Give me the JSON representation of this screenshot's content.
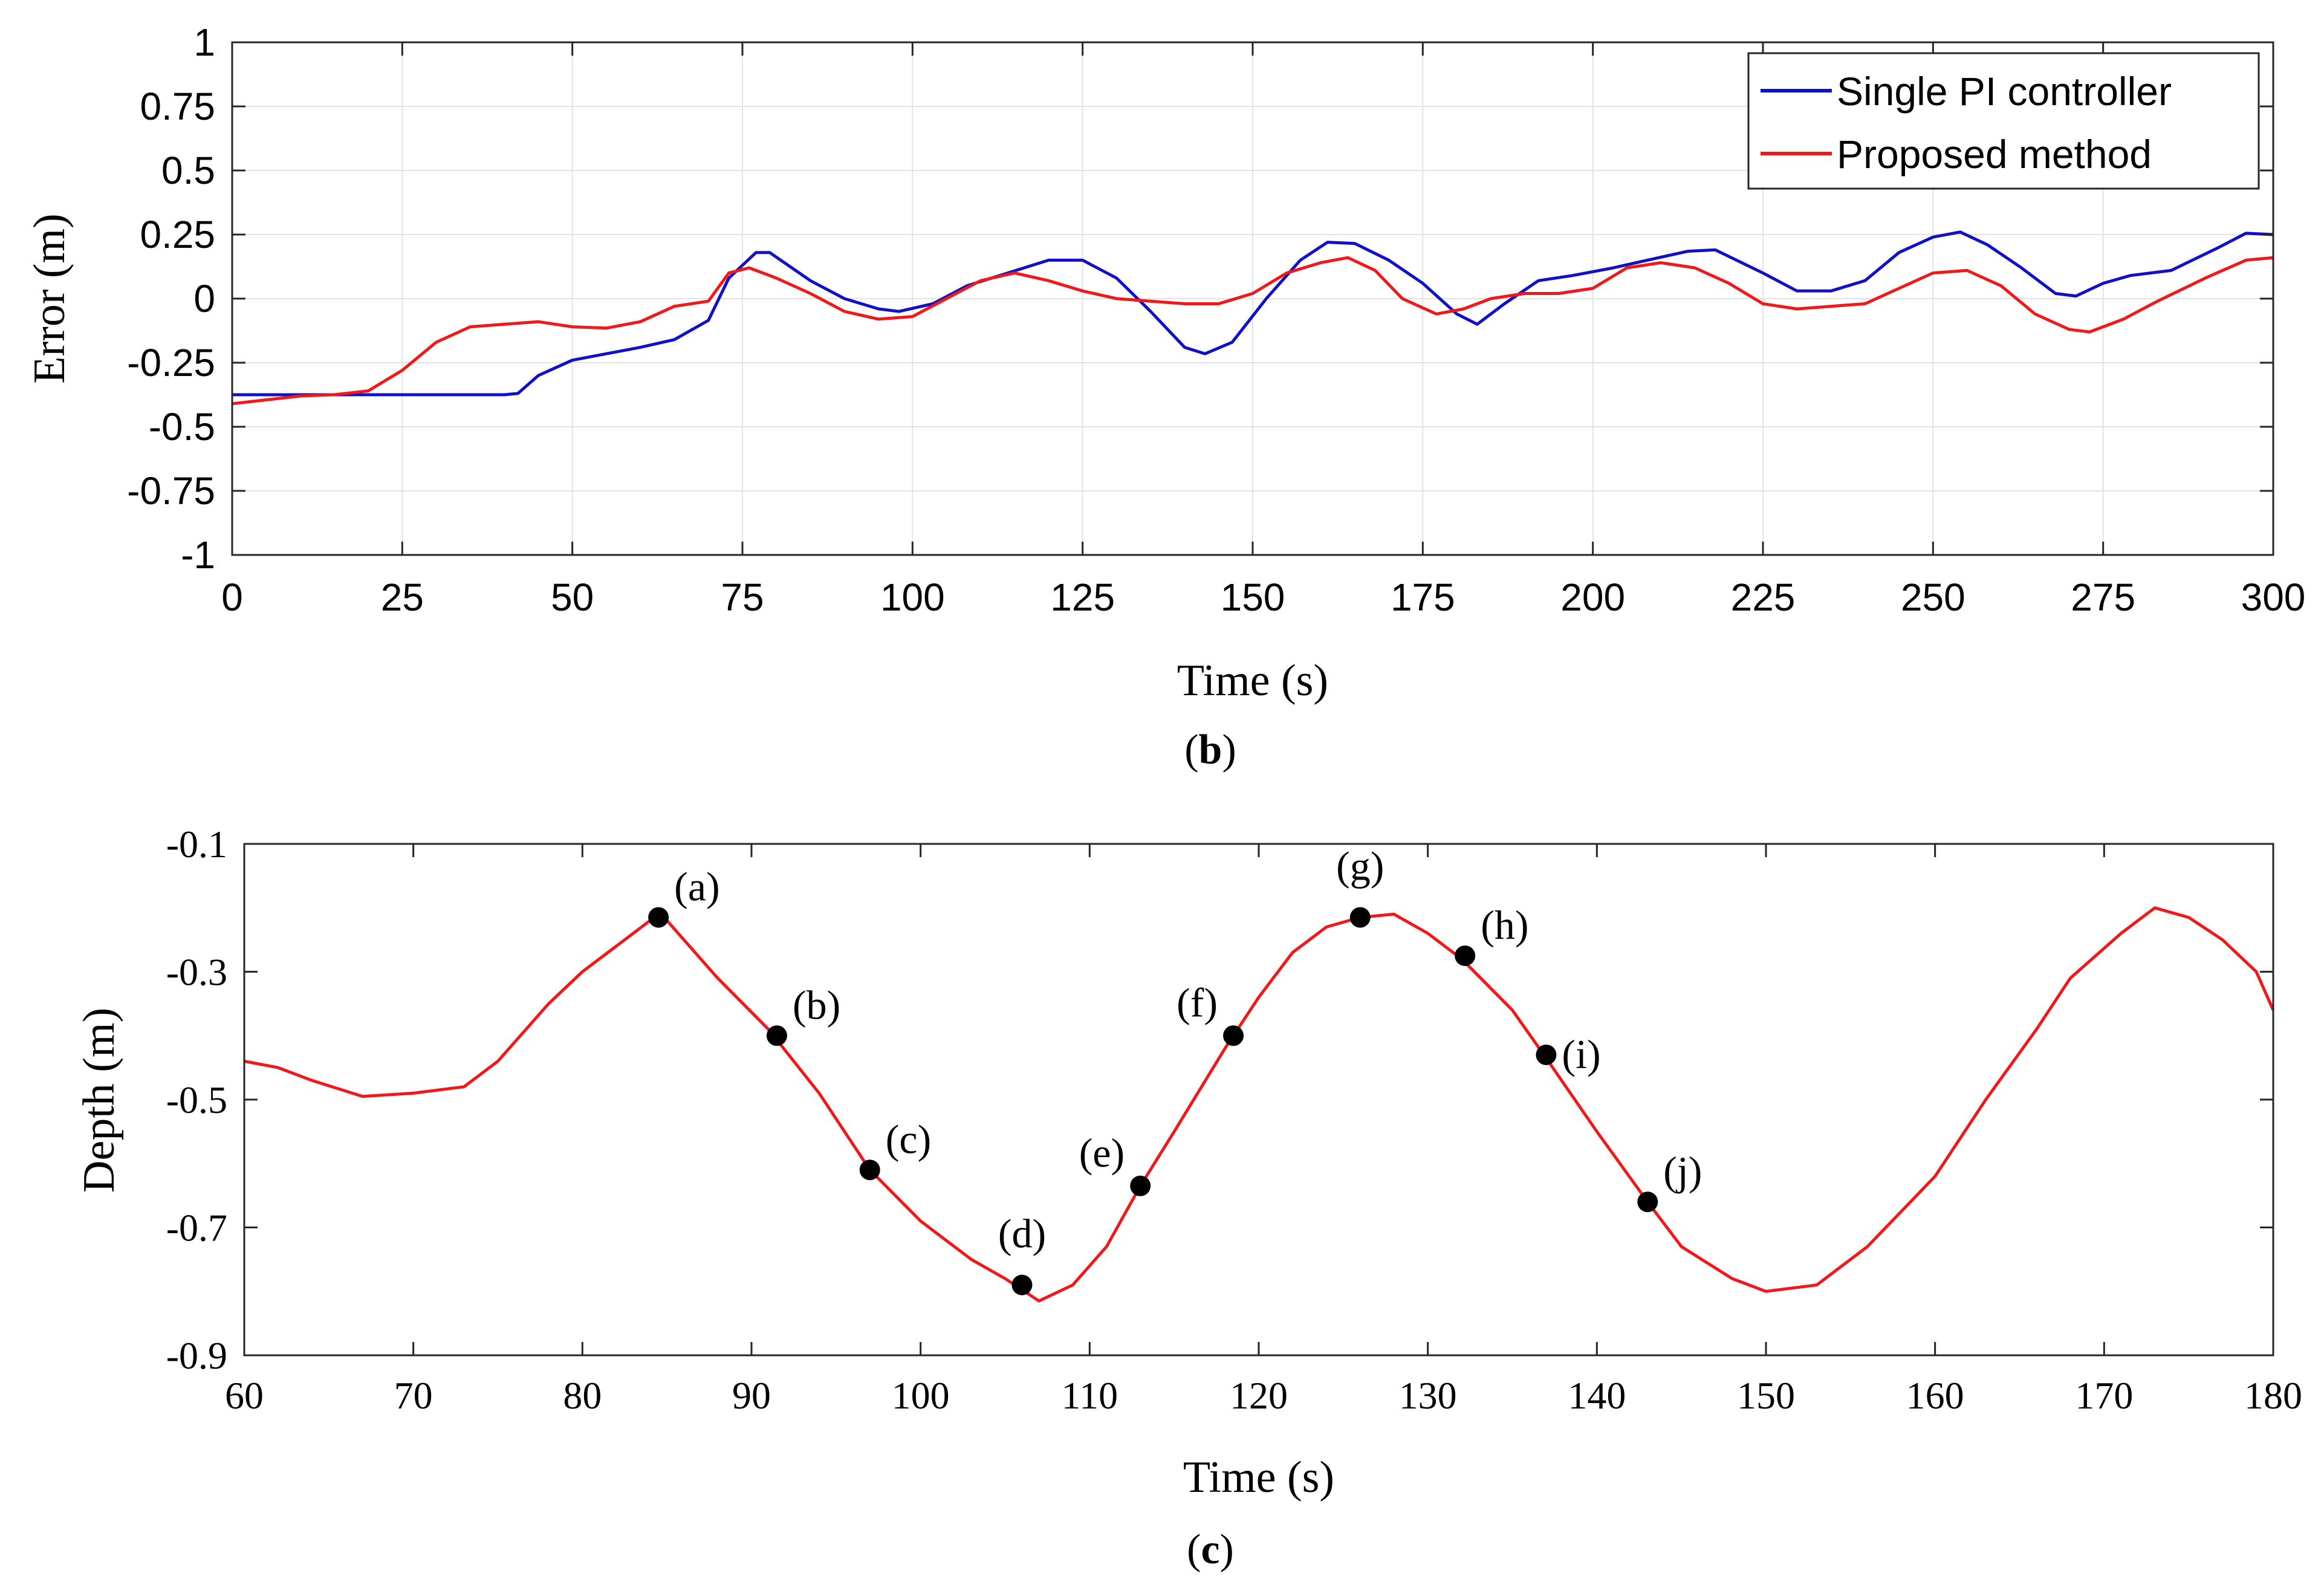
{
  "chart_data": [
    {
      "id": "b",
      "type": "line",
      "caption": "b",
      "xlabel": "Time (s)",
      "ylabel": "Error (m)",
      "xlim": [
        0,
        300
      ],
      "ylim": [
        -1,
        1
      ],
      "xticks": [
        "0",
        "25",
        "50",
        "75",
        "100",
        "125",
        "150",
        "175",
        "200",
        "225",
        "250",
        "275",
        "300"
      ],
      "yticks": [
        "1",
        "0.75",
        "0.5",
        "0.25",
        "0",
        "-0.25",
        "-0.5",
        "-0.75",
        "-1"
      ],
      "grid": true,
      "legend_position": "top-right",
      "series": [
        {
          "name": "Single PI controller",
          "color": "#1010c8",
          "points": [
            [
              0,
              -0.375
            ],
            [
              40,
              -0.375
            ],
            [
              42,
              -0.37
            ],
            [
              45,
              -0.3
            ],
            [
              50,
              -0.24
            ],
            [
              55,
              -0.215
            ],
            [
              60,
              -0.19
            ],
            [
              65,
              -0.16
            ],
            [
              70,
              -0.085
            ],
            [
              73,
              0.08
            ],
            [
              77,
              0.18
            ],
            [
              79,
              0.18
            ],
            [
              85,
              0.07
            ],
            [
              90,
              0.0
            ],
            [
              95,
              -0.04
            ],
            [
              98,
              -0.05
            ],
            [
              103,
              -0.02
            ],
            [
              108,
              0.05
            ],
            [
              114,
              0.1
            ],
            [
              120,
              0.15
            ],
            [
              125,
              0.15
            ],
            [
              130,
              0.08
            ],
            [
              135,
              -0.05
            ],
            [
              140,
              -0.19
            ],
            [
              143,
              -0.215
            ],
            [
              147,
              -0.17
            ],
            [
              152,
              0.0
            ],
            [
              157,
              0.15
            ],
            [
              161,
              0.22
            ],
            [
              165,
              0.215
            ],
            [
              170,
              0.15
            ],
            [
              175,
              0.06
            ],
            [
              180,
              -0.06
            ],
            [
              183,
              -0.1
            ],
            [
              187,
              -0.02
            ],
            [
              192,
              0.07
            ],
            [
              197,
              0.09
            ],
            [
              203,
              0.12
            ],
            [
              208,
              0.15
            ],
            [
              214,
              0.185
            ],
            [
              218,
              0.19
            ],
            [
              225,
              0.1
            ],
            [
              230,
              0.03
            ],
            [
              235,
              0.03
            ],
            [
              240,
              0.07
            ],
            [
              245,
              0.18
            ],
            [
              250,
              0.24
            ],
            [
              254,
              0.26
            ],
            [
              258,
              0.21
            ],
            [
              263,
              0.12
            ],
            [
              268,
              0.02
            ],
            [
              271,
              0.01
            ],
            [
              275,
              0.06
            ],
            [
              279,
              0.09
            ],
            [
              285,
              0.11
            ],
            [
              292,
              0.2
            ],
            [
              296,
              0.255
            ],
            [
              300,
              0.25
            ]
          ]
        },
        {
          "name": "Proposed method",
          "color": "#f01818",
          "points": [
            [
              0,
              -0.41
            ],
            [
              5,
              -0.395
            ],
            [
              10,
              -0.38
            ],
            [
              15,
              -0.375
            ],
            [
              20,
              -0.36
            ],
            [
              25,
              -0.28
            ],
            [
              30,
              -0.17
            ],
            [
              35,
              -0.11
            ],
            [
              40,
              -0.1
            ],
            [
              45,
              -0.09
            ],
            [
              50,
              -0.11
            ],
            [
              55,
              -0.115
            ],
            [
              60,
              -0.09
            ],
            [
              65,
              -0.03
            ],
            [
              70,
              -0.01
            ],
            [
              73,
              0.1
            ],
            [
              76,
              0.12
            ],
            [
              80,
              0.08
            ],
            [
              85,
              0.02
            ],
            [
              90,
              -0.05
            ],
            [
              95,
              -0.08
            ],
            [
              100,
              -0.07
            ],
            [
              105,
              0.0
            ],
            [
              110,
              0.07
            ],
            [
              115,
              0.1
            ],
            [
              120,
              0.07
            ],
            [
              125,
              0.03
            ],
            [
              130,
              0.0
            ],
            [
              135,
              -0.01
            ],
            [
              140,
              -0.02
            ],
            [
              145,
              -0.02
            ],
            [
              150,
              0.02
            ],
            [
              155,
              0.1
            ],
            [
              160,
              0.14
            ],
            [
              164,
              0.16
            ],
            [
              168,
              0.11
            ],
            [
              172,
              0.0
            ],
            [
              177,
              -0.06
            ],
            [
              181,
              -0.04
            ],
            [
              185,
              0.0
            ],
            [
              190,
              0.02
            ],
            [
              195,
              0.02
            ],
            [
              200,
              0.04
            ],
            [
              205,
              0.12
            ],
            [
              210,
              0.14
            ],
            [
              215,
              0.12
            ],
            [
              220,
              0.06
            ],
            [
              225,
              -0.02
            ],
            [
              230,
              -0.04
            ],
            [
              235,
              -0.03
            ],
            [
              240,
              -0.02
            ],
            [
              245,
              0.04
            ],
            [
              250,
              0.1
            ],
            [
              255,
              0.11
            ],
            [
              260,
              0.05
            ],
            [
              265,
              -0.06
            ],
            [
              270,
              -0.12
            ],
            [
              273,
              -0.13
            ],
            [
              278,
              -0.08
            ],
            [
              283,
              -0.01
            ],
            [
              290,
              0.08
            ],
            [
              296,
              0.15
            ],
            [
              300,
              0.16
            ]
          ]
        }
      ]
    },
    {
      "id": "c",
      "type": "line",
      "caption": "c",
      "xlabel": "Time (s)",
      "ylabel": "Depth (m)",
      "xlim": [
        60,
        180
      ],
      "ylim": [
        -0.9,
        -0.1
      ],
      "xticks": [
        "60",
        "70",
        "80",
        "90",
        "100",
        "110",
        "120",
        "130",
        "140",
        "150",
        "160",
        "170",
        "180"
      ],
      "yticks": [
        "-0.1",
        "-0.3",
        "-0.5",
        "-0.7",
        "-0.9"
      ],
      "grid": false,
      "series": [
        {
          "name": "Depth",
          "color": "#f01818",
          "points": [
            [
              60,
              -0.44
            ],
            [
              62,
              -0.45
            ],
            [
              64,
              -0.47
            ],
            [
              67,
              -0.495
            ],
            [
              70,
              -0.49
            ],
            [
              73,
              -0.48
            ],
            [
              75,
              -0.44
            ],
            [
              78,
              -0.35
            ],
            [
              80,
              -0.3
            ],
            [
              82,
              -0.26
            ],
            [
              84,
              -0.22
            ],
            [
              85,
              -0.22
            ],
            [
              88,
              -0.31
            ],
            [
              91,
              -0.39
            ],
            [
              94,
              -0.49
            ],
            [
              97,
              -0.61
            ],
            [
              100,
              -0.69
            ],
            [
              103,
              -0.75
            ],
            [
              105,
              -0.78
            ],
            [
              107,
              -0.815
            ],
            [
              109,
              -0.79
            ],
            [
              111,
              -0.73
            ],
            [
              113,
              -0.635
            ],
            [
              115,
              -0.55
            ],
            [
              118,
              -0.42
            ],
            [
              120,
              -0.34
            ],
            [
              122,
              -0.27
            ],
            [
              124,
              -0.23
            ],
            [
              126,
              -0.215
            ],
            [
              128,
              -0.21
            ],
            [
              130,
              -0.24
            ],
            [
              132,
              -0.28
            ],
            [
              135,
              -0.36
            ],
            [
              137,
              -0.435
            ],
            [
              140,
              -0.55
            ],
            [
              143,
              -0.66
            ],
            [
              145,
              -0.73
            ],
            [
              148,
              -0.78
            ],
            [
              150,
              -0.8
            ],
            [
              153,
              -0.79
            ],
            [
              156,
              -0.73
            ],
            [
              160,
              -0.62
            ],
            [
              163,
              -0.5
            ],
            [
              166,
              -0.39
            ],
            [
              168,
              -0.31
            ],
            [
              171,
              -0.24
            ],
            [
              173,
              -0.2
            ],
            [
              175,
              -0.215
            ],
            [
              177,
              -0.25
            ],
            [
              179,
              -0.3
            ],
            [
              180,
              -0.36
            ]
          ]
        }
      ],
      "annotations": [
        {
          "label": "(a)",
          "x": 84.5,
          "y": -0.215,
          "label_side": "right-above"
        },
        {
          "label": "(b)",
          "x": 91.5,
          "y": -0.4,
          "label_side": "right-above"
        },
        {
          "label": "(c)",
          "x": 97,
          "y": -0.61,
          "label_side": "right-above"
        },
        {
          "label": "(d)",
          "x": 106,
          "y": -0.79,
          "label_side": "above"
        },
        {
          "label": "(e)",
          "x": 113,
          "y": -0.635,
          "label_side": "left-above"
        },
        {
          "label": "(f)",
          "x": 118.5,
          "y": -0.4,
          "label_side": "left-above"
        },
        {
          "label": "(g)",
          "x": 126,
          "y": -0.215,
          "label_side": "above"
        },
        {
          "label": "(h)",
          "x": 132.2,
          "y": -0.275,
          "label_side": "right-above"
        },
        {
          "label": "(i)",
          "x": 137,
          "y": -0.43,
          "label_side": "right"
        },
        {
          "label": "(j)",
          "x": 143,
          "y": -0.66,
          "label_side": "right-above"
        }
      ]
    }
  ]
}
